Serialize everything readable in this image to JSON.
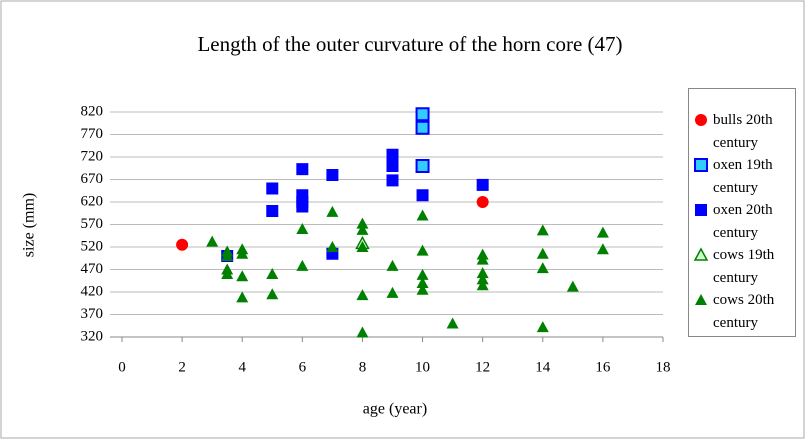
{
  "chart_data": {
    "type": "scatter",
    "title": "Length of the outer curvature of the horn core (47)",
    "xlabel": "age (year)",
    "ylabel": "size (mm)",
    "xlim": [
      0,
      18
    ],
    "xticks": [
      0,
      2,
      4,
      6,
      8,
      10,
      12,
      14,
      16,
      18
    ],
    "ylim": [
      320,
      820
    ],
    "yticks": [
      320,
      370,
      420,
      470,
      520,
      570,
      620,
      670,
      720,
      770,
      820
    ],
    "grid": true,
    "legend": "right",
    "series": [
      {
        "name": "bulls 20th century",
        "color": "#ff0000",
        "marker": "circle",
        "x": [
          2,
          12
        ],
        "values": [
          525,
          620
        ]
      },
      {
        "name": "oxen 19th century",
        "color": "#33ccff",
        "marker": "square-outline",
        "x": [
          10,
          10,
          10
        ],
        "values": [
          815,
          785,
          700
        ]
      },
      {
        "name": "oxen 20th century",
        "color": "#0000ff",
        "marker": "square",
        "x": [
          3.5,
          5,
          5,
          6,
          6,
          6,
          6,
          7,
          7,
          9,
          9,
          9,
          9,
          10,
          12
        ],
        "values": [
          500,
          650,
          600,
          693,
          635,
          620,
          610,
          680,
          505,
          725,
          710,
          700,
          668,
          635,
          658
        ]
      },
      {
        "name": "cows 19th century",
        "color": "#ccffcc",
        "marker": "triangle-outline",
        "x": [
          8
        ],
        "values": [
          528
        ]
      },
      {
        "name": "cows 20th century",
        "color": "#008000",
        "marker": "triangle",
        "x": [
          3,
          3.5,
          3.5,
          3.5,
          3.5,
          4,
          4,
          4,
          4,
          5,
          5,
          6,
          6,
          7,
          7,
          8,
          8,
          8,
          8,
          8,
          9,
          9,
          10,
          10,
          10,
          10,
          10,
          11,
          12,
          12,
          12,
          12,
          12,
          14,
          14,
          14,
          14,
          15,
          16,
          16
        ],
        "values": [
          532,
          510,
          500,
          470,
          460,
          515,
          505,
          455,
          408,
          460,
          415,
          560,
          478,
          598,
          520,
          572,
          558,
          520,
          413,
          330,
          478,
          418,
          590,
          512,
          458,
          440,
          425,
          350,
          503,
          492,
          462,
          448,
          435,
          557,
          505,
          473,
          342,
          432,
          552,
          515
        ]
      }
    ]
  }
}
